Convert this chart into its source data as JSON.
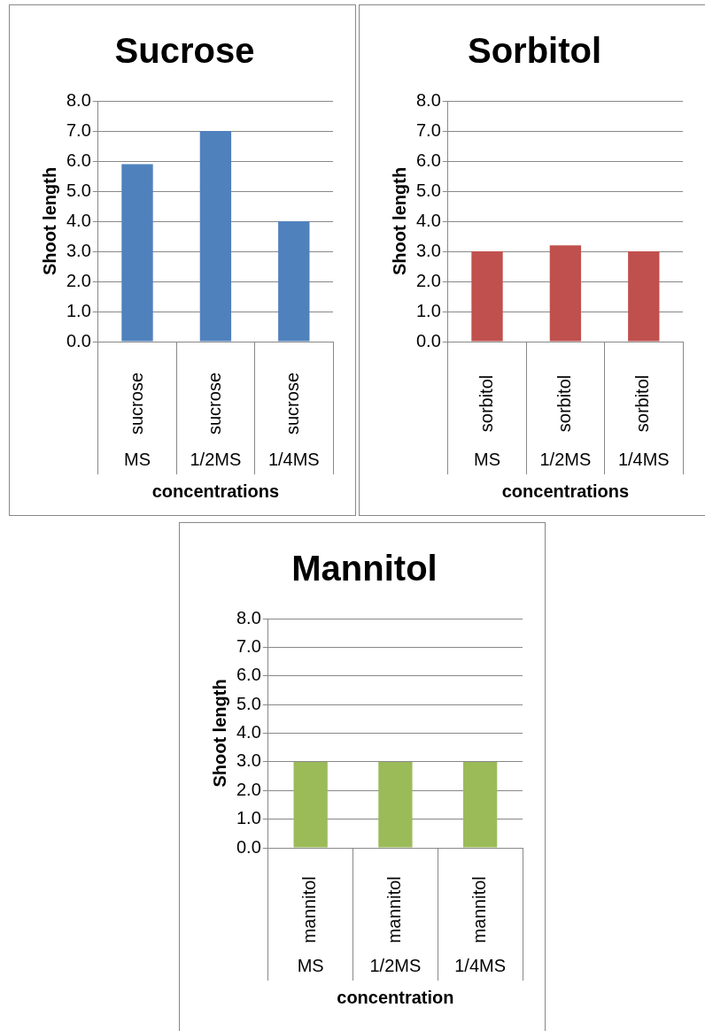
{
  "chart_data": [
    {
      "type": "bar",
      "title": "Sucrose",
      "xlabel": "concentrations",
      "ylabel": "Shoot length",
      "categories": [
        "MS",
        "1/2MS",
        "1/4MS"
      ],
      "values": [
        5.9,
        7.0,
        4.0
      ],
      "color": "#4f81bd",
      "ylim": [
        0,
        8
      ],
      "yticks": [
        {
          "value": 0,
          "label": "0.0"
        },
        {
          "value": 1,
          "label": "1.0"
        },
        {
          "value": 2,
          "label": "2.0"
        },
        {
          "value": 3,
          "label": "3.0"
        },
        {
          "value": 4,
          "label": "4.0"
        },
        {
          "value": 5,
          "label": "5.0"
        },
        {
          "value": 6,
          "label": "6.0"
        },
        {
          "value": 7,
          "label": "7.0"
        },
        {
          "value": 8,
          "label": "8.0"
        }
      ],
      "grid": "y",
      "annotations": [
        "sucrose",
        "sucrose",
        "sucrose"
      ]
    },
    {
      "type": "bar",
      "title": "Sorbitol",
      "xlabel": "concentrations",
      "ylabel": "Shoot length",
      "categories": [
        "MS",
        "1/2MS",
        "1/4MS"
      ],
      "values": [
        3.0,
        3.2,
        3.0
      ],
      "color": "#c0504d",
      "ylim": [
        0,
        8
      ],
      "yticks": [
        {
          "value": 0,
          "label": "0.0"
        },
        {
          "value": 1,
          "label": "1.0"
        },
        {
          "value": 2,
          "label": "2.0"
        },
        {
          "value": 3,
          "label": "3.0"
        },
        {
          "value": 4,
          "label": "4.0"
        },
        {
          "value": 5,
          "label": "5.0"
        },
        {
          "value": 6,
          "label": "6.0"
        },
        {
          "value": 7,
          "label": "7.0"
        },
        {
          "value": 8,
          "label": "8.0"
        }
      ],
      "grid": "y",
      "annotations": [
        "sorbitol",
        "sorbitol",
        "sorbitol"
      ]
    },
    {
      "type": "bar",
      "title": "Mannitol",
      "xlabel": "concentration",
      "ylabel": "Shoot length",
      "categories": [
        "MS",
        "1/2MS",
        "1/4MS"
      ],
      "values": [
        3.0,
        3.0,
        3.0
      ],
      "color": "#9bbb59",
      "ylim": [
        0,
        8
      ],
      "yticks": [
        {
          "value": 0,
          "label": "0.0"
        },
        {
          "value": 1,
          "label": "1.0"
        },
        {
          "value": 2,
          "label": "2.0"
        },
        {
          "value": 3,
          "label": "3.0"
        },
        {
          "value": 4,
          "label": "4.0"
        },
        {
          "value": 5,
          "label": "5.0"
        },
        {
          "value": 6,
          "label": "6.0"
        },
        {
          "value": 7,
          "label": "7.0"
        },
        {
          "value": 8,
          "label": "8.0"
        }
      ],
      "grid": "y",
      "annotations": [
        "mannitol",
        "mannitol",
        "mannitol"
      ]
    }
  ]
}
